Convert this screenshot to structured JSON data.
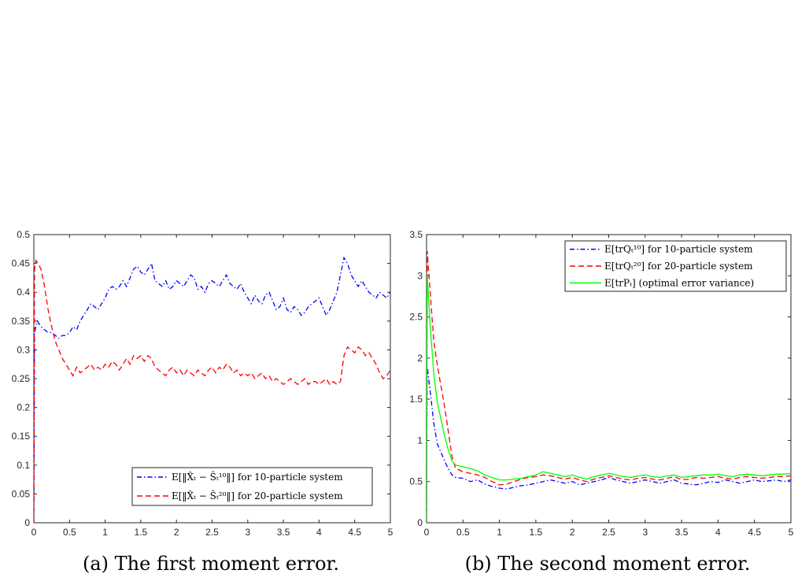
{
  "chart_data": [
    {
      "type": "line",
      "caption": "(a) The first moment error.",
      "xlim": [
        0,
        5
      ],
      "ylim": [
        0,
        0.5
      ],
      "xticks": [
        "0",
        "0.5",
        "1",
        "1.5",
        "2",
        "2.5",
        "3",
        "3.5",
        "4",
        "4.5",
        "5"
      ],
      "yticks": [
        "0",
        "0.05",
        "0.1",
        "0.15",
        "0.2",
        "0.25",
        "0.3",
        "0.35",
        "0.4",
        "0.45",
        "0.5"
      ],
      "legend_position": "bottom-right",
      "series": [
        {
          "name": "E[‖X̂ₜ − Ŝₜ¹⁰‖] for 10-particle system",
          "color": "#0000ff",
          "style": "dashdot",
          "x": [
            0,
            0.01,
            0.05,
            0.1,
            0.15,
            0.2,
            0.25,
            0.3,
            0.35,
            0.4,
            0.45,
            0.5,
            0.55,
            0.6,
            0.65,
            0.7,
            0.75,
            0.8,
            0.85,
            0.9,
            0.95,
            1.0,
            1.05,
            1.1,
            1.15,
            1.2,
            1.25,
            1.3,
            1.35,
            1.4,
            1.45,
            1.5,
            1.55,
            1.6,
            1.65,
            1.7,
            1.75,
            1.8,
            1.85,
            1.9,
            1.95,
            2.0,
            2.05,
            2.1,
            2.15,
            2.2,
            2.25,
            2.3,
            2.35,
            2.4,
            2.45,
            2.5,
            2.55,
            2.6,
            2.65,
            2.7,
            2.75,
            2.8,
            2.85,
            2.9,
            2.95,
            3.0,
            3.05,
            3.1,
            3.15,
            3.2,
            3.25,
            3.3,
            3.35,
            3.4,
            3.45,
            3.5,
            3.55,
            3.6,
            3.65,
            3.7,
            3.75,
            3.8,
            3.85,
            3.9,
            3.95,
            4.0,
            4.05,
            4.1,
            4.15,
            4.2,
            4.25,
            4.3,
            4.35,
            4.4,
            4.45,
            4.5,
            4.55,
            4.6,
            4.65,
            4.7,
            4.75,
            4.8,
            4.85,
            4.9,
            4.95,
            5.0
          ],
          "y": [
            0,
            0.33,
            0.35,
            0.34,
            0.335,
            0.33,
            0.33,
            0.325,
            0.32,
            0.325,
            0.325,
            0.33,
            0.34,
            0.335,
            0.35,
            0.36,
            0.37,
            0.38,
            0.375,
            0.37,
            0.38,
            0.39,
            0.405,
            0.41,
            0.405,
            0.41,
            0.42,
            0.41,
            0.425,
            0.44,
            0.445,
            0.435,
            0.43,
            0.44,
            0.45,
            0.42,
            0.415,
            0.41,
            0.42,
            0.405,
            0.41,
            0.42,
            0.415,
            0.41,
            0.42,
            0.43,
            0.425,
            0.405,
            0.41,
            0.4,
            0.415,
            0.42,
            0.415,
            0.41,
            0.42,
            0.43,
            0.415,
            0.41,
            0.405,
            0.415,
            0.4,
            0.39,
            0.38,
            0.395,
            0.385,
            0.38,
            0.395,
            0.4,
            0.385,
            0.37,
            0.375,
            0.39,
            0.37,
            0.365,
            0.375,
            0.37,
            0.36,
            0.365,
            0.375,
            0.38,
            0.385,
            0.39,
            0.375,
            0.36,
            0.37,
            0.385,
            0.4,
            0.43,
            0.46,
            0.45,
            0.43,
            0.42,
            0.41,
            0.42,
            0.41,
            0.4,
            0.395,
            0.39,
            0.4,
            0.395,
            0.39,
            0.4
          ]
        },
        {
          "name": "E[‖X̂ₜ − Ŝₜ²⁰‖] for 20-particle system",
          "color": "#ff0000",
          "style": "dashed",
          "x": [
            0,
            0.01,
            0.03,
            0.06,
            0.1,
            0.15,
            0.2,
            0.25,
            0.3,
            0.35,
            0.4,
            0.45,
            0.5,
            0.55,
            0.6,
            0.65,
            0.7,
            0.75,
            0.8,
            0.85,
            0.9,
            0.95,
            1.0,
            1.05,
            1.1,
            1.15,
            1.2,
            1.25,
            1.3,
            1.35,
            1.4,
            1.45,
            1.5,
            1.55,
            1.6,
            1.65,
            1.7,
            1.75,
            1.8,
            1.85,
            1.9,
            1.95,
            2.0,
            2.05,
            2.1,
            2.15,
            2.2,
            2.25,
            2.3,
            2.35,
            2.4,
            2.45,
            2.5,
            2.55,
            2.6,
            2.65,
            2.7,
            2.75,
            2.8,
            2.85,
            2.9,
            2.95,
            3.0,
            3.05,
            3.1,
            3.15,
            3.2,
            3.25,
            3.3,
            3.35,
            3.4,
            3.45,
            3.5,
            3.55,
            3.6,
            3.65,
            3.7,
            3.75,
            3.8,
            3.85,
            3.9,
            3.95,
            4.0,
            4.05,
            4.1,
            4.15,
            4.2,
            4.25,
            4.3,
            4.35,
            4.4,
            4.45,
            4.5,
            4.55,
            4.6,
            4.65,
            4.7,
            4.75,
            4.8,
            4.85,
            4.9,
            4.95,
            5.0
          ],
          "y": [
            0,
            0.44,
            0.455,
            0.45,
            0.44,
            0.41,
            0.37,
            0.34,
            0.315,
            0.3,
            0.285,
            0.275,
            0.265,
            0.255,
            0.27,
            0.26,
            0.265,
            0.27,
            0.275,
            0.265,
            0.27,
            0.265,
            0.275,
            0.27,
            0.28,
            0.275,
            0.265,
            0.275,
            0.285,
            0.275,
            0.29,
            0.285,
            0.29,
            0.28,
            0.29,
            0.285,
            0.27,
            0.265,
            0.26,
            0.255,
            0.265,
            0.27,
            0.26,
            0.265,
            0.255,
            0.265,
            0.26,
            0.255,
            0.265,
            0.26,
            0.255,
            0.265,
            0.27,
            0.26,
            0.27,
            0.265,
            0.275,
            0.27,
            0.26,
            0.265,
            0.255,
            0.26,
            0.255,
            0.26,
            0.25,
            0.255,
            0.26,
            0.25,
            0.255,
            0.245,
            0.25,
            0.245,
            0.24,
            0.245,
            0.25,
            0.245,
            0.24,
            0.245,
            0.25,
            0.24,
            0.245,
            0.245,
            0.24,
            0.245,
            0.25,
            0.24,
            0.245,
            0.24,
            0.245,
            0.29,
            0.305,
            0.3,
            0.295,
            0.305,
            0.3,
            0.29,
            0.295,
            0.285,
            0.275,
            0.26,
            0.25,
            0.255,
            0.265
          ]
        }
      ]
    },
    {
      "type": "line",
      "caption": "(b) The second moment error.",
      "xlim": [
        0,
        5
      ],
      "ylim": [
        0,
        3.5
      ],
      "xticks": [
        "0",
        "0.5",
        "1",
        "1.5",
        "2",
        "2.5",
        "3",
        "3.5",
        "4",
        "4.5",
        "5"
      ],
      "yticks": [
        "0",
        "0.5",
        "1",
        "1.5",
        "2",
        "2.5",
        "3",
        "3.5"
      ],
      "legend_position": "top-right",
      "series": [
        {
          "name": "E[trQₜ¹⁰] for 10-particle system",
          "color": "#0000ff",
          "style": "dashdot",
          "x": [
            0,
            0.01,
            0.05,
            0.1,
            0.15,
            0.2,
            0.25,
            0.3,
            0.35,
            0.4,
            0.5,
            0.6,
            0.7,
            0.8,
            0.9,
            1.0,
            1.1,
            1.2,
            1.3,
            1.4,
            1.5,
            1.6,
            1.7,
            1.8,
            1.9,
            2.0,
            2.1,
            2.2,
            2.3,
            2.4,
            2.5,
            2.6,
            2.7,
            2.8,
            2.9,
            3.0,
            3.1,
            3.2,
            3.3,
            3.4,
            3.5,
            3.6,
            3.7,
            3.8,
            3.9,
            4.0,
            4.1,
            4.2,
            4.3,
            4.4,
            4.5,
            4.6,
            4.7,
            4.8,
            4.9,
            5.0
          ],
          "y": [
            0,
            1.9,
            1.6,
            1.2,
            0.95,
            0.85,
            0.75,
            0.65,
            0.58,
            0.55,
            0.54,
            0.5,
            0.52,
            0.47,
            0.44,
            0.42,
            0.41,
            0.43,
            0.45,
            0.46,
            0.48,
            0.5,
            0.52,
            0.5,
            0.48,
            0.5,
            0.46,
            0.48,
            0.5,
            0.52,
            0.55,
            0.52,
            0.5,
            0.48,
            0.5,
            0.52,
            0.5,
            0.48,
            0.5,
            0.52,
            0.48,
            0.47,
            0.46,
            0.48,
            0.5,
            0.49,
            0.52,
            0.5,
            0.48,
            0.5,
            0.52,
            0.5,
            0.51,
            0.52,
            0.5,
            0.52
          ]
        },
        {
          "name": "E[trQₜ²⁰] for 20-particle system",
          "color": "#ff0000",
          "style": "dashed",
          "x": [
            0,
            0.01,
            0.05,
            0.1,
            0.15,
            0.2,
            0.25,
            0.3,
            0.35,
            0.4,
            0.5,
            0.6,
            0.7,
            0.8,
            0.9,
            1.0,
            1.1,
            1.2,
            1.3,
            1.4,
            1.5,
            1.6,
            1.7,
            1.8,
            1.9,
            2.0,
            2.1,
            2.2,
            2.3,
            2.4,
            2.5,
            2.6,
            2.7,
            2.8,
            2.9,
            3.0,
            3.1,
            3.2,
            3.3,
            3.4,
            3.5,
            3.6,
            3.7,
            3.8,
            3.9,
            4.0,
            4.1,
            4.2,
            4.3,
            4.4,
            4.5,
            4.6,
            4.7,
            4.8,
            4.9,
            5.0
          ],
          "y": [
            0,
            3.3,
            2.8,
            2.2,
            1.9,
            1.65,
            1.4,
            1.1,
            0.8,
            0.66,
            0.62,
            0.6,
            0.58,
            0.55,
            0.5,
            0.46,
            0.47,
            0.5,
            0.53,
            0.55,
            0.56,
            0.58,
            0.57,
            0.55,
            0.53,
            0.55,
            0.52,
            0.5,
            0.53,
            0.55,
            0.57,
            0.55,
            0.53,
            0.52,
            0.54,
            0.55,
            0.53,
            0.52,
            0.54,
            0.56,
            0.52,
            0.53,
            0.55,
            0.54,
            0.55,
            0.56,
            0.54,
            0.53,
            0.55,
            0.56,
            0.55,
            0.54,
            0.55,
            0.56,
            0.56,
            0.57
          ]
        },
        {
          "name": "E[trPₜ] (optimal error variance)",
          "color": "#00ff00",
          "style": "solid",
          "x": [
            0,
            0.01,
            0.05,
            0.1,
            0.15,
            0.2,
            0.25,
            0.3,
            0.35,
            0.4,
            0.5,
            0.6,
            0.7,
            0.8,
            0.9,
            1.0,
            1.1,
            1.2,
            1.3,
            1.4,
            1.5,
            1.6,
            1.7,
            1.8,
            1.9,
            2.0,
            2.1,
            2.2,
            2.3,
            2.4,
            2.5,
            2.6,
            2.7,
            2.8,
            2.9,
            3.0,
            3.1,
            3.2,
            3.3,
            3.4,
            3.5,
            3.6,
            3.7,
            3.8,
            3.9,
            4.0,
            4.1,
            4.2,
            4.3,
            4.4,
            4.5,
            4.6,
            4.7,
            4.8,
            4.9,
            5.0
          ],
          "y": [
            0,
            3.0,
            2.4,
            1.8,
            1.45,
            1.25,
            1.05,
            0.88,
            0.75,
            0.7,
            0.68,
            0.66,
            0.63,
            0.58,
            0.55,
            0.52,
            0.52,
            0.53,
            0.54,
            0.56,
            0.58,
            0.62,
            0.6,
            0.58,
            0.56,
            0.58,
            0.55,
            0.53,
            0.56,
            0.58,
            0.6,
            0.58,
            0.56,
            0.55,
            0.57,
            0.58,
            0.56,
            0.55,
            0.57,
            0.58,
            0.55,
            0.56,
            0.57,
            0.58,
            0.58,
            0.59,
            0.57,
            0.56,
            0.58,
            0.59,
            0.58,
            0.57,
            0.58,
            0.59,
            0.59,
            0.6
          ]
        }
      ]
    }
  ]
}
